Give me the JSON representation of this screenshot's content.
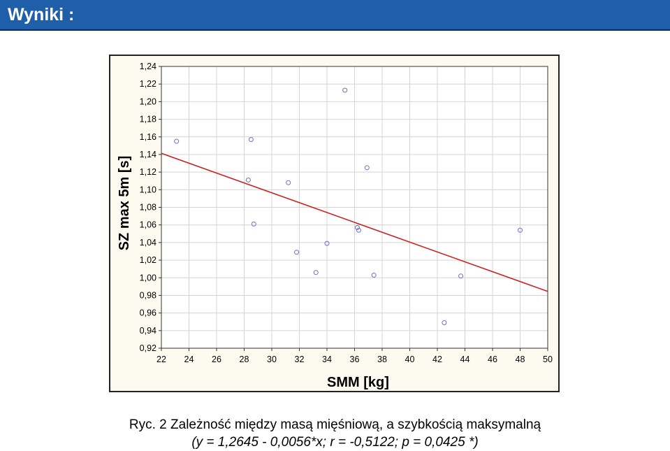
{
  "header": {
    "title": "Wyniki :"
  },
  "chart_data": {
    "type": "scatter",
    "xlabel": "SMM [kg]",
    "ylabel": "SZ max 5m [s]",
    "xlim": [
      22,
      50
    ],
    "ylim": [
      0.92,
      1.24
    ],
    "x_ticks": [
      22,
      24,
      26,
      28,
      30,
      32,
      34,
      36,
      38,
      40,
      42,
      44,
      46,
      48,
      50
    ],
    "x_tick_labels": [
      "22",
      "24",
      "26",
      "28",
      "30",
      "32",
      "34",
      "36",
      "38",
      "40",
      "42",
      "44",
      "46",
      "48",
      "50"
    ],
    "y_ticks": [
      0.92,
      0.94,
      0.96,
      0.98,
      1.0,
      1.02,
      1.04,
      1.06,
      1.08,
      1.1,
      1.12,
      1.14,
      1.16,
      1.18,
      1.2,
      1.22,
      1.24
    ],
    "y_tick_labels": [
      "0,92",
      "0,94",
      "0,96",
      "0,98",
      "1,00",
      "1,02",
      "1,04",
      "1,06",
      "1,08",
      "1,10",
      "1,12",
      "1,14",
      "1,16",
      "1,18",
      "1,20",
      "1,22",
      "1,24"
    ],
    "grid": true,
    "points": [
      {
        "x": 23.1,
        "y": 1.155
      },
      {
        "x": 28.3,
        "y": 1.111
      },
      {
        "x": 28.5,
        "y": 1.157
      },
      {
        "x": 28.7,
        "y": 1.061
      },
      {
        "x": 31.2,
        "y": 1.108
      },
      {
        "x": 31.8,
        "y": 1.029
      },
      {
        "x": 33.2,
        "y": 1.006
      },
      {
        "x": 34.0,
        "y": 1.039
      },
      {
        "x": 35.3,
        "y": 1.213
      },
      {
        "x": 36.2,
        "y": 1.057
      },
      {
        "x": 36.3,
        "y": 1.054
      },
      {
        "x": 36.9,
        "y": 1.125
      },
      {
        "x": 37.4,
        "y": 1.003
      },
      {
        "x": 42.5,
        "y": 0.949
      },
      {
        "x": 43.7,
        "y": 1.002
      },
      {
        "x": 48.0,
        "y": 1.054
      }
    ],
    "fit_line": {
      "intercept": 1.2645,
      "slope": -0.0056
    },
    "colors": {
      "points": "#6e6ec8",
      "fit_line": "#cc2222",
      "grid": "#d4d4d4",
      "plot_bg": "#ffffff",
      "frame_bg": "#fdfaf0"
    }
  },
  "caption": {
    "line1": "Ryc. 2 Zależność  między masą mięśniową, a szybkością  maksymalną",
    "line2": "(y = 1,2645 - 0,0056*x;  r = -0,5122; p = 0,0425 *)"
  }
}
